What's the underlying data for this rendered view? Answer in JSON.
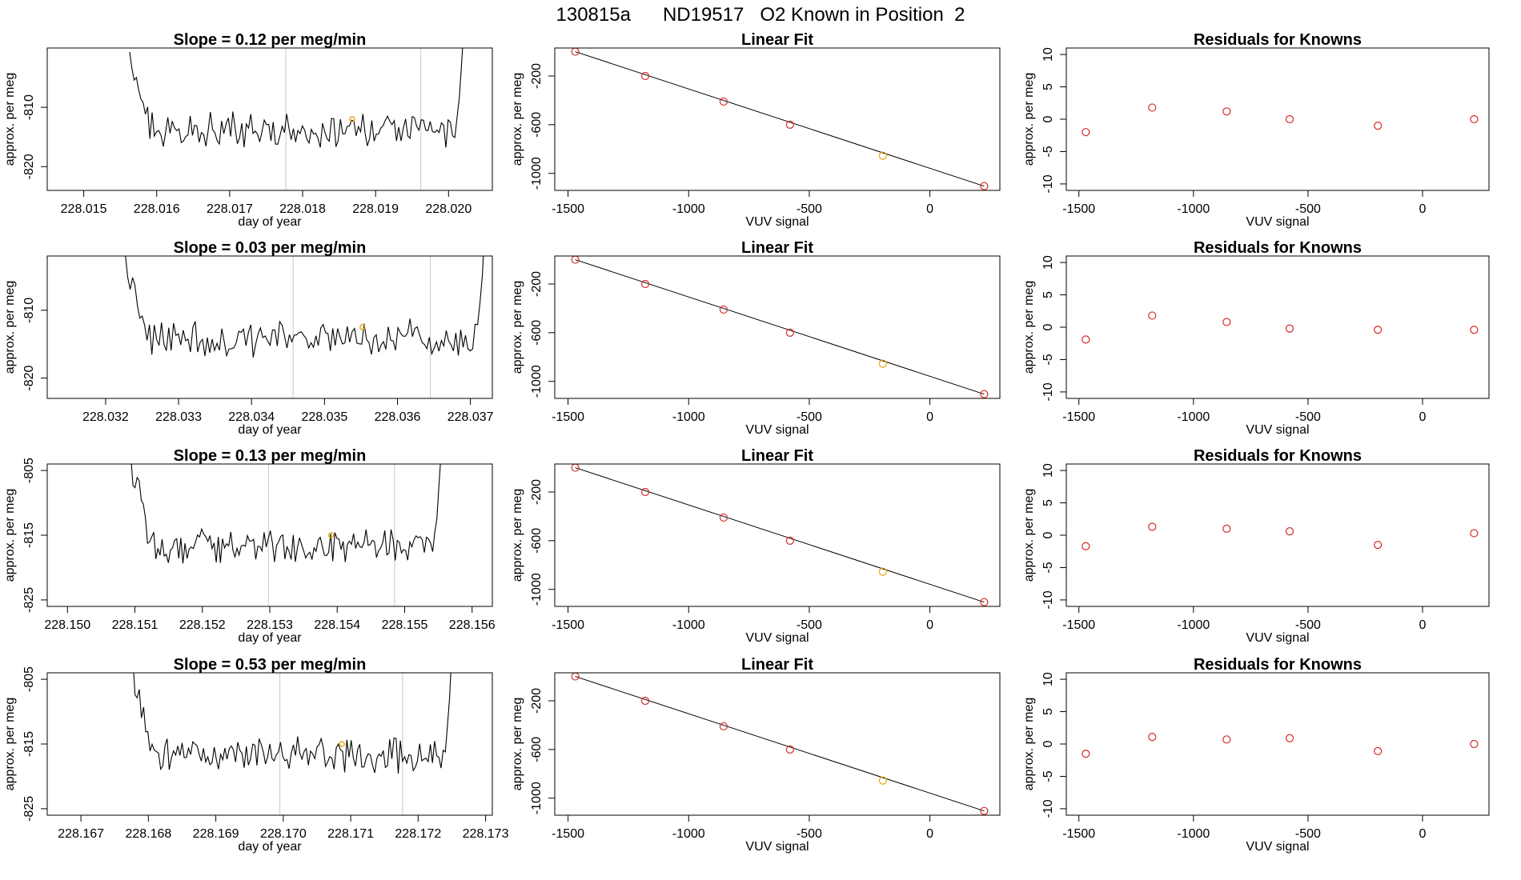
{
  "figure_title": "130815a      ND19517   O2 Known in Position  2",
  "colors": {
    "trace": "#000000",
    "marker": "#d62728",
    "highlight": "#e6a817",
    "guide": "#c8c8c8",
    "frame": "#000000"
  },
  "chart_data": [
    {
      "type": "line",
      "row": 1,
      "panel": "time-series",
      "title": "Slope =  0.12  per meg/min",
      "xlabel": "day of year",
      "ylabel": "approx. per meg",
      "xlim": [
        228.0145,
        228.0206
      ],
      "ylim": [
        -824,
        -800
      ],
      "xticks": [
        "228.015",
        "228.016",
        "228.017",
        "228.018",
        "228.019",
        "228.020"
      ],
      "xtick_values": [
        228.015,
        228.016,
        228.017,
        228.018,
        228.019,
        228.02
      ],
      "yticks": [
        "-810",
        "-820"
      ],
      "ytick_values": [
        -810,
        -820
      ],
      "guide_lines_x": [
        228.01777,
        228.01962
      ],
      "series_x_range": [
        228.01563,
        228.02024
      ],
      "highlight_point": [
        228.01868,
        -812
      ]
    },
    {
      "type": "scatter",
      "row": 1,
      "panel": "linear-fit",
      "title": "Linear Fit",
      "xlabel": "VUV signal",
      "ylabel": "approx. per meg",
      "xlim": [
        -1555,
        290
      ],
      "ylim": [
        -1140,
        30
      ],
      "xticks": [
        "-1500",
        "-1000",
        "-500",
        "0"
      ],
      "xtick_values": [
        -1500,
        -1000,
        -500,
        0
      ],
      "yticks": [
        "-200",
        "-600",
        "-1000"
      ],
      "ytick_values": [
        -200,
        -600,
        -1000
      ],
      "points": [
        [
          -1470,
          0
        ],
        [
          -1180,
          -200
        ],
        [
          -855,
          -410
        ],
        [
          -580,
          -600
        ],
        [
          -195,
          -855
        ],
        [
          225,
          -1105
        ]
      ],
      "highlight_index": 4,
      "fit_line": [
        [
          -1470,
          0
        ],
        [
          225,
          -1105
        ]
      ]
    },
    {
      "type": "scatter",
      "row": 1,
      "panel": "residuals",
      "title": "Residuals for Knowns",
      "xlabel": "VUV signal",
      "ylabel": "approx. per meg",
      "xlim": [
        -1555,
        290
      ],
      "ylim": [
        -11,
        11
      ],
      "xticks": [
        "-1500",
        "-1000",
        "-500",
        "0"
      ],
      "xtick_values": [
        -1500,
        -1000,
        -500,
        0
      ],
      "yticks": [
        "10",
        "5",
        "0",
        "-5",
        "-10"
      ],
      "ytick_values": [
        10,
        5,
        0,
        -5,
        -10
      ],
      "points": [
        [
          -1470,
          -2.0
        ],
        [
          -1180,
          1.8
        ],
        [
          -855,
          1.2
        ],
        [
          -580,
          0.0
        ],
        [
          -195,
          -1.0
        ],
        [
          225,
          0.0
        ]
      ]
    },
    {
      "type": "line",
      "row": 2,
      "panel": "time-series",
      "title": "Slope =  0.03  per meg/min",
      "xlabel": "day of year",
      "ylabel": "approx. per meg",
      "xlim": [
        228.0312,
        228.0373
      ],
      "ylim": [
        -823,
        -802
      ],
      "xticks": [
        "228.032",
        "228.033",
        "228.034",
        "228.035",
        "228.036",
        "228.037"
      ],
      "xtick_values": [
        228.032,
        228.033,
        228.034,
        228.035,
        228.036,
        228.037
      ],
      "yticks": [
        "-810",
        "-820"
      ],
      "ytick_values": [
        -810,
        -820
      ],
      "guide_lines_x": [
        228.03457,
        228.03645
      ],
      "series_x_range": [
        228.03227,
        228.03723
      ],
      "highlight_point": [
        228.03552,
        -812.5
      ]
    },
    {
      "type": "scatter",
      "row": 2,
      "panel": "linear-fit",
      "title": "Linear Fit",
      "xlabel": "VUV signal",
      "ylabel": "approx. per meg",
      "xlim": [
        -1555,
        290
      ],
      "ylim": [
        -1140,
        30
      ],
      "xticks": [
        "-1500",
        "-1000",
        "-500",
        "0"
      ],
      "xtick_values": [
        -1500,
        -1000,
        -500,
        0
      ],
      "yticks": [
        "-200",
        "-600",
        "-1000"
      ],
      "ytick_values": [
        -200,
        -600,
        -1000
      ],
      "points": [
        [
          -1470,
          0
        ],
        [
          -1180,
          -200
        ],
        [
          -855,
          -410
        ],
        [
          -580,
          -600
        ],
        [
          -195,
          -855
        ],
        [
          225,
          -1105
        ]
      ],
      "highlight_index": 4,
      "fit_line": [
        [
          -1470,
          0
        ],
        [
          225,
          -1105
        ]
      ]
    },
    {
      "type": "scatter",
      "row": 2,
      "panel": "residuals",
      "title": "Residuals for Knowns",
      "xlabel": "VUV signal",
      "ylabel": "approx. per meg",
      "xlim": [
        -1555,
        290
      ],
      "ylim": [
        -11,
        11
      ],
      "xticks": [
        "-1500",
        "-1000",
        "-500",
        "0"
      ],
      "xtick_values": [
        -1500,
        -1000,
        -500,
        0
      ],
      "yticks": [
        "10",
        "5",
        "0",
        "-5",
        "-10"
      ],
      "ytick_values": [
        10,
        5,
        0,
        -5,
        -10
      ],
      "points": [
        [
          -1470,
          -1.9
        ],
        [
          -1180,
          1.8
        ],
        [
          -855,
          0.8
        ],
        [
          -580,
          -0.2
        ],
        [
          -195,
          -0.4
        ],
        [
          225,
          -0.4
        ]
      ]
    },
    {
      "type": "line",
      "row": 3,
      "panel": "time-series",
      "title": "Slope =  0.13  per meg/min",
      "xlabel": "day of year",
      "ylabel": "approx. per meg",
      "xlim": [
        228.1497,
        228.1563
      ],
      "ylim": [
        -826,
        -804
      ],
      "xticks": [
        "228.150",
        "228.151",
        "228.152",
        "228.153",
        "228.154",
        "228.155",
        "228.156"
      ],
      "xtick_values": [
        228.15,
        228.151,
        228.152,
        228.153,
        228.154,
        228.155,
        228.156
      ],
      "yticks": [
        "-805",
        "-815",
        "-825"
      ],
      "ytick_values": [
        -805,
        -815,
        -825
      ],
      "guide_lines_x": [
        228.15298,
        228.15485
      ],
      "series_x_range": [
        228.15094,
        228.15557
      ],
      "highlight_point": [
        228.15391,
        -815
      ]
    },
    {
      "type": "scatter",
      "row": 3,
      "panel": "linear-fit",
      "title": "Linear Fit",
      "xlabel": "VUV signal",
      "ylabel": "approx. per meg",
      "xlim": [
        -1555,
        290
      ],
      "ylim": [
        -1140,
        30
      ],
      "xticks": [
        "-1500",
        "-1000",
        "-500",
        "0"
      ],
      "xtick_values": [
        -1500,
        -1000,
        -500,
        0
      ],
      "yticks": [
        "-200",
        "-600",
        "-1000"
      ],
      "ytick_values": [
        -200,
        -600,
        -1000
      ],
      "points": [
        [
          -1470,
          0
        ],
        [
          -1180,
          -200
        ],
        [
          -855,
          -410
        ],
        [
          -580,
          -600
        ],
        [
          -195,
          -855
        ],
        [
          225,
          -1105
        ]
      ],
      "highlight_index": 4,
      "fit_line": [
        [
          -1470,
          0
        ],
        [
          225,
          -1105
        ]
      ]
    },
    {
      "type": "scatter",
      "row": 3,
      "panel": "residuals",
      "title": "Residuals for Knowns",
      "xlabel": "VUV signal",
      "ylabel": "approx. per meg",
      "xlim": [
        -1555,
        290
      ],
      "ylim": [
        -11,
        11
      ],
      "xticks": [
        "-1500",
        "-1000",
        "-500",
        "0"
      ],
      "xtick_values": [
        -1500,
        -1000,
        -500,
        0
      ],
      "yticks": [
        "10",
        "5",
        "0",
        "-5",
        "-10"
      ],
      "ytick_values": [
        10,
        5,
        0,
        -5,
        -10
      ],
      "points": [
        [
          -1470,
          -1.7
        ],
        [
          -1180,
          1.3
        ],
        [
          -855,
          1.0
        ],
        [
          -580,
          0.6
        ],
        [
          -195,
          -1.5
        ],
        [
          225,
          0.3
        ]
      ]
    },
    {
      "type": "line",
      "row": 4,
      "panel": "time-series",
      "title": "Slope =  0.53  per meg/min",
      "xlabel": "day of year",
      "ylabel": "approx. per meg",
      "xlim": [
        228.1665,
        228.1731
      ],
      "ylim": [
        -826,
        -804
      ],
      "xticks": [
        "228.167",
        "228.168",
        "228.169",
        "228.170",
        "228.171",
        "228.172",
        "228.173"
      ],
      "xtick_values": [
        228.167,
        228.168,
        228.169,
        228.17,
        228.171,
        228.172,
        228.173
      ],
      "yticks": [
        "-805",
        "-815",
        "-825"
      ],
      "ytick_values": [
        -805,
        -815,
        -825
      ],
      "guide_lines_x": [
        228.16995,
        228.17177
      ],
      "series_x_range": [
        228.16777,
        228.17253
      ],
      "highlight_point": [
        228.17087,
        -815
      ]
    },
    {
      "type": "scatter",
      "row": 4,
      "panel": "linear-fit",
      "title": "Linear Fit",
      "xlabel": "VUV signal",
      "ylabel": "approx. per meg",
      "xlim": [
        -1555,
        290
      ],
      "ylim": [
        -1140,
        30
      ],
      "xticks": [
        "-1500",
        "-1000",
        "-500",
        "0"
      ],
      "xtick_values": [
        -1500,
        -1000,
        -500,
        0
      ],
      "yticks": [
        "-200",
        "-600",
        "-1000"
      ],
      "ytick_values": [
        -200,
        -600,
        -1000
      ],
      "points": [
        [
          -1470,
          0
        ],
        [
          -1180,
          -200
        ],
        [
          -855,
          -410
        ],
        [
          -580,
          -600
        ],
        [
          -195,
          -855
        ],
        [
          225,
          -1105
        ]
      ],
      "highlight_index": 4,
      "fit_line": [
        [
          -1470,
          0
        ],
        [
          225,
          -1105
        ]
      ]
    },
    {
      "type": "scatter",
      "row": 4,
      "panel": "residuals",
      "title": "Residuals for Knowns",
      "xlabel": "VUV signal",
      "ylabel": "approx. per meg",
      "xlim": [
        -1555,
        290
      ],
      "ylim": [
        -11,
        11
      ],
      "xticks": [
        "-1500",
        "-1000",
        "-500",
        "0"
      ],
      "xtick_values": [
        -1500,
        -1000,
        -500,
        0
      ],
      "yticks": [
        "10",
        "5",
        "0",
        "-5",
        "-10"
      ],
      "ytick_values": [
        10,
        5,
        0,
        -5,
        -10
      ],
      "points": [
        [
          -1470,
          -1.5
        ],
        [
          -1180,
          1.1
        ],
        [
          -855,
          0.7
        ],
        [
          -580,
          0.9
        ],
        [
          -195,
          -1.1
        ],
        [
          225,
          0.0
        ]
      ]
    }
  ]
}
